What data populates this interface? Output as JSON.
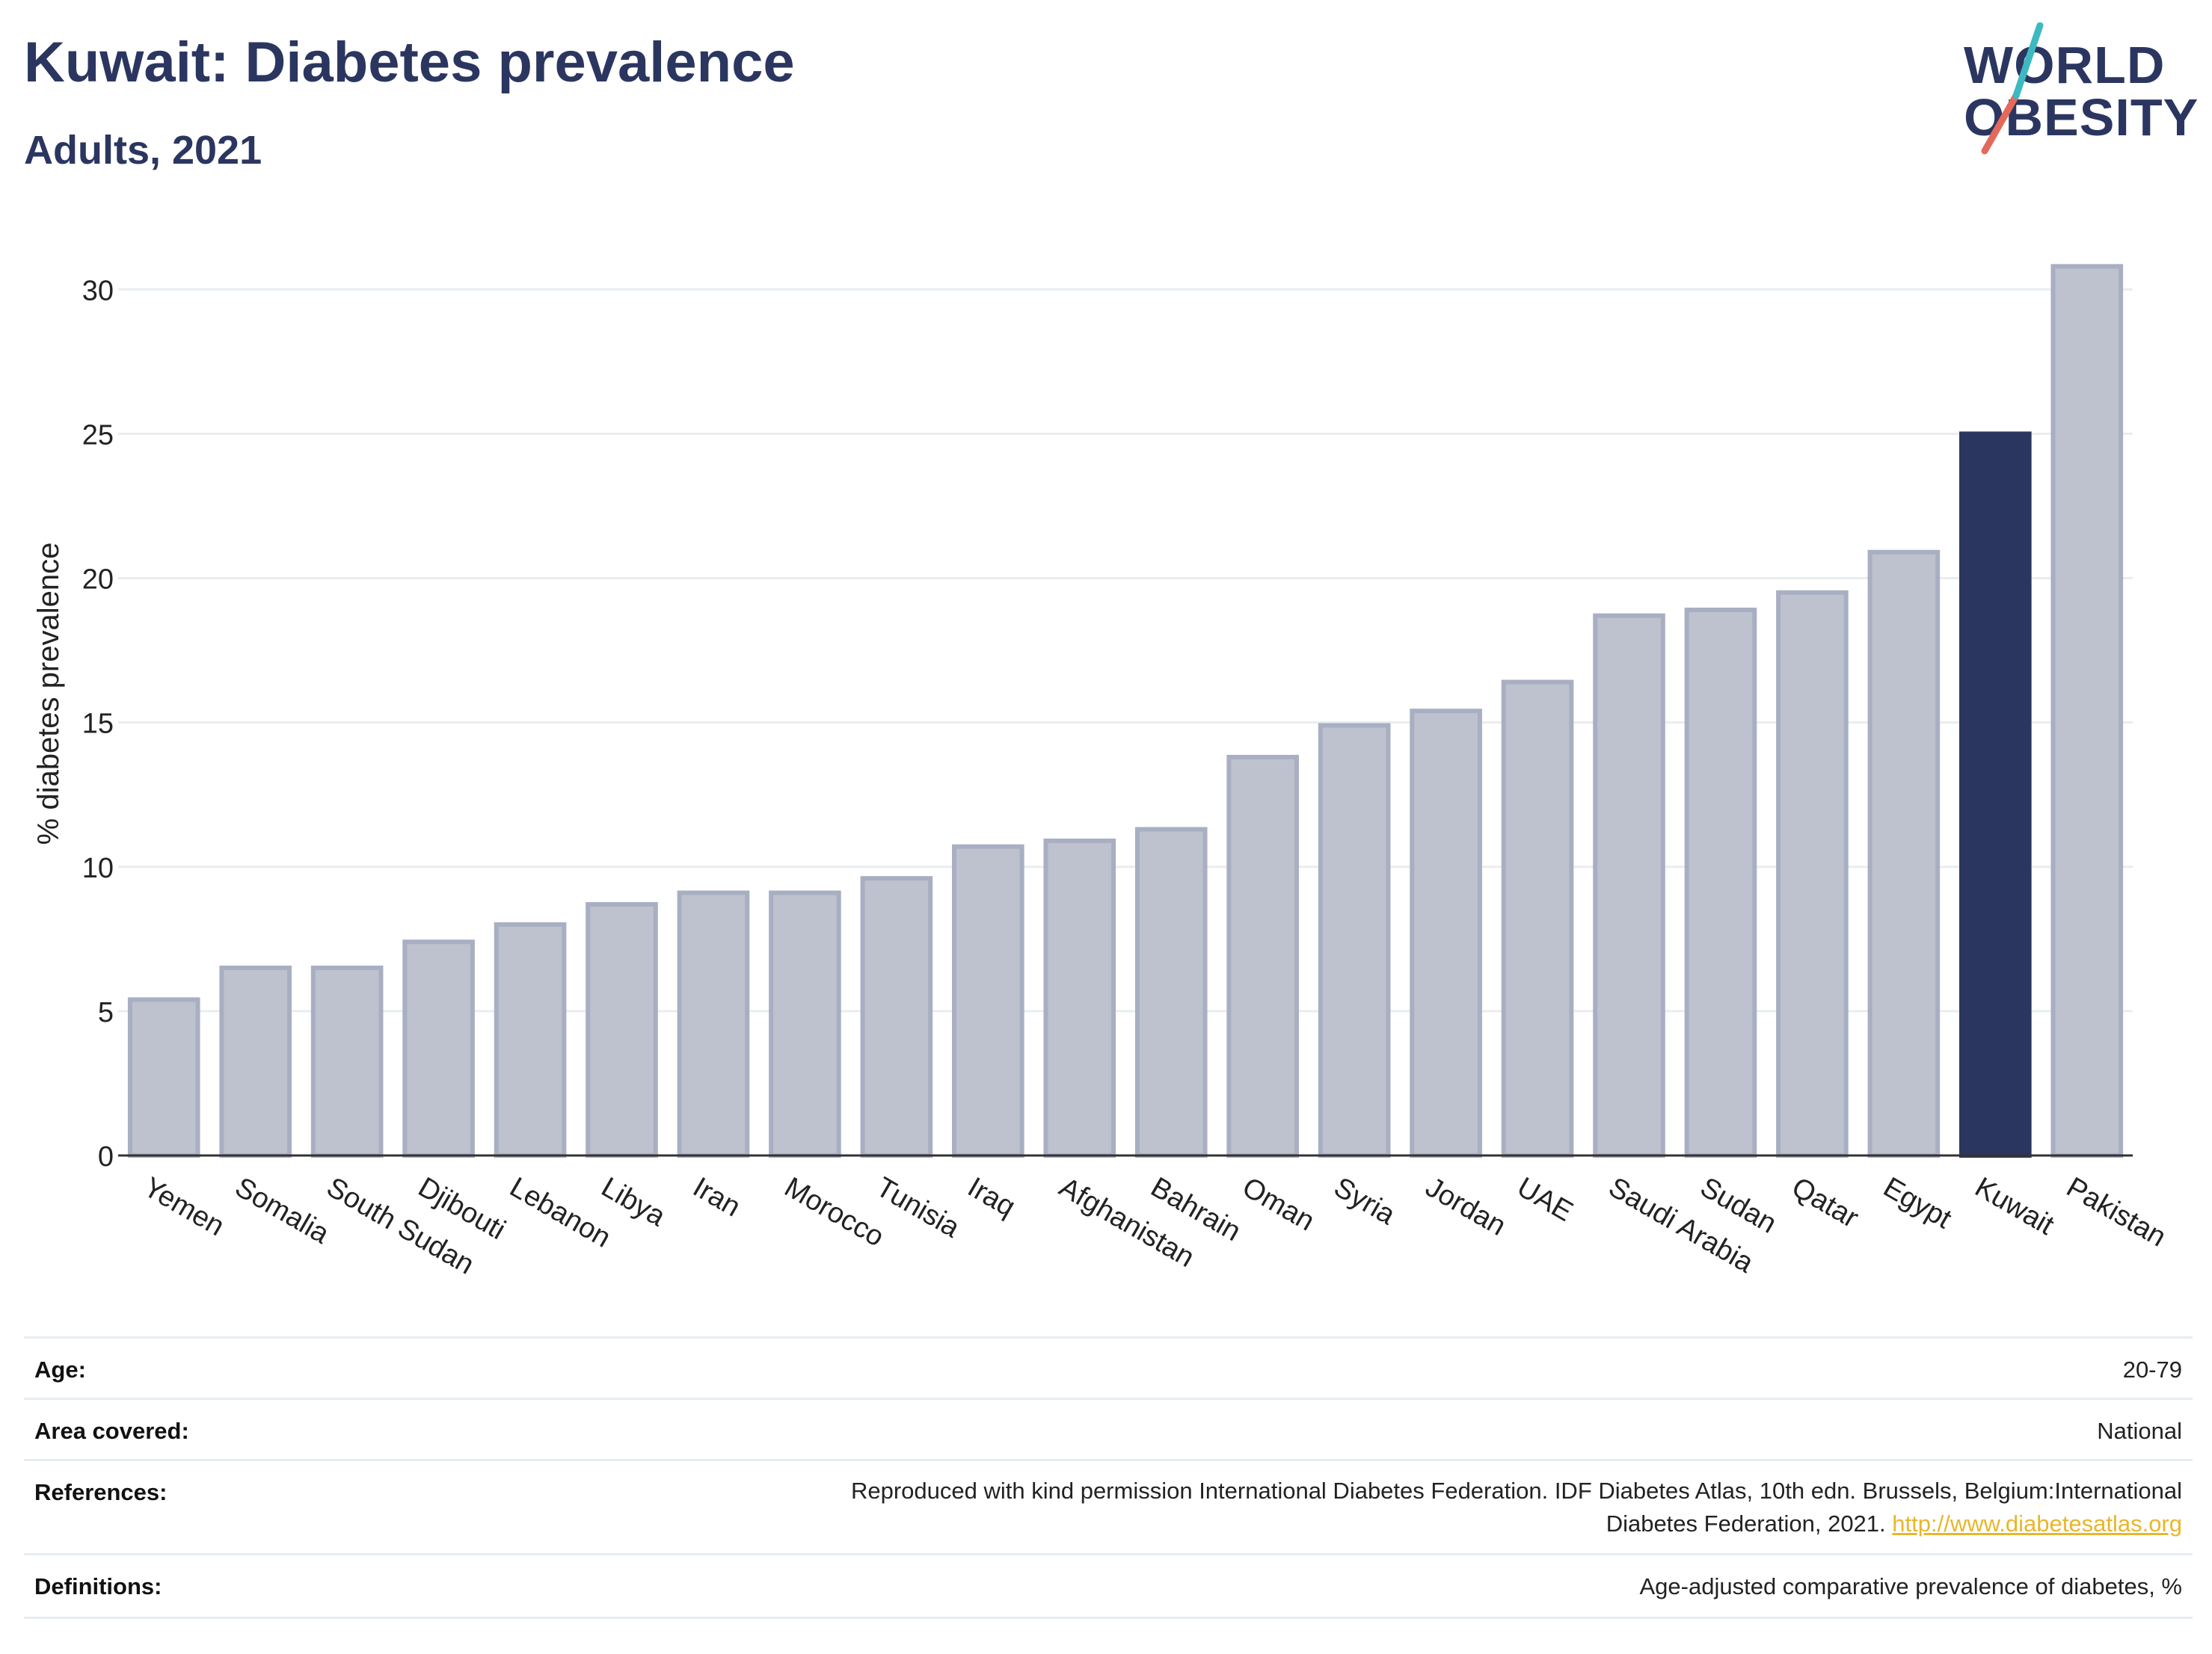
{
  "header": {
    "title": "Kuwait: Diabetes prevalence",
    "subtitle": "Adults, 2021"
  },
  "logo": {
    "line1": "WORLD",
    "line2": "OBESITY",
    "accent_color": "#e4695b",
    "accent_color_2": "#3cb9c1"
  },
  "chart_data": {
    "type": "bar",
    "title": "Kuwait: Diabetes prevalence",
    "subtitle": "Adults, 2021",
    "xlabel": "",
    "ylabel": "% diabetes prevalence",
    "ylim": [
      0,
      32
    ],
    "yticks": [
      0,
      5,
      10,
      15,
      20,
      25,
      30
    ],
    "grid": true,
    "highlight": "Kuwait",
    "colors": {
      "bar": "#bec1ce",
      "bar_border": "#a9afc2",
      "highlight": "#2b3660"
    },
    "categories": [
      "Yemen",
      "Somalia",
      "South Sudan",
      "Djibouti",
      "Lebanon",
      "Libya",
      "Iran",
      "Morocco",
      "Tunisia",
      "Iraq",
      "Afghanistan",
      "Bahrain",
      "Oman",
      "Syria",
      "Jordan",
      "UAE",
      "Saudi Arabia",
      "Sudan",
      "Qatar",
      "Egypt",
      "Kuwait",
      "Pakistan"
    ],
    "values": [
      5.4,
      6.5,
      6.5,
      7.4,
      8.0,
      8.7,
      9.1,
      9.1,
      9.6,
      10.7,
      10.9,
      11.3,
      13.8,
      14.9,
      15.4,
      16.4,
      18.7,
      18.9,
      19.5,
      20.9,
      25.0,
      30.8
    ]
  },
  "meta": {
    "age_label": "Age:",
    "age_value": "20-79",
    "area_label": "Area covered:",
    "area_value": "National",
    "references_label": "References:",
    "references_line1": "Reproduced with kind permission International Diabetes Federation.  IDF Diabetes Atlas, 10th edn. Brussels, Belgium:International",
    "references_line2": "Diabetes Federation, 2021.",
    "references_link": "http://www.diabetesatlas.org",
    "definitions_label": "Definitions:",
    "definitions_value": "Age-adjusted comparative prevalence of diabetes, %"
  }
}
